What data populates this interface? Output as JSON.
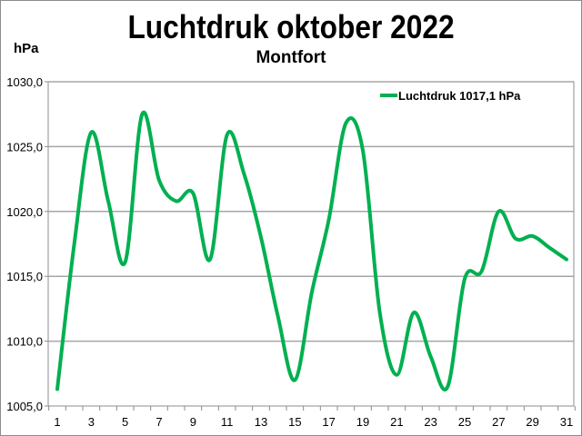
{
  "chart_data": {
    "type": "line",
    "title": "Luchtdruk oktober 2022",
    "subtitle": "Montfort",
    "ylabel": "hPa",
    "xlabel": "",
    "x": [
      1,
      2,
      3,
      4,
      5,
      6,
      7,
      8,
      9,
      10,
      11,
      12,
      13,
      14,
      15,
      16,
      17,
      18,
      19,
      20,
      21,
      22,
      23,
      24,
      25,
      26,
      27,
      28,
      29,
      30,
      31
    ],
    "xticks": [
      "1",
      "3",
      "5",
      "7",
      "9",
      "11",
      "13",
      "15",
      "17",
      "19",
      "21",
      "23",
      "25",
      "27",
      "29",
      "31"
    ],
    "yticks": [
      "1005,0",
      "1010,0",
      "1015,0",
      "1020,0",
      "1025,0",
      "1030,0"
    ],
    "ylim": [
      1005,
      1030
    ],
    "xlim": [
      1,
      31
    ],
    "grid": true,
    "legend_position": "top-right",
    "series": [
      {
        "name": "Luchtdruk 1017,1 hPa",
        "color": "#00b050",
        "smooth": true,
        "values": [
          1006.3,
          1017.5,
          1026.1,
          1020.8,
          1016.1,
          1027.5,
          1022.4,
          1020.8,
          1021.4,
          1016.3,
          1025.9,
          1022.9,
          1018.0,
          1011.9,
          1007.0,
          1013.8,
          1019.4,
          1026.8,
          1024.7,
          1012.2,
          1007.4,
          1012.2,
          1008.8,
          1006.5,
          1014.8,
          1015.4,
          1020.0,
          1017.9,
          1018.1,
          1017.2,
          1016.3
        ]
      }
    ]
  }
}
